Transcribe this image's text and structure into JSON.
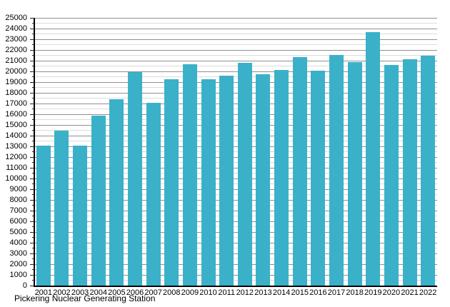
{
  "caption": "Pickering Nuclear Generating Station",
  "colors": {
    "bar": "#3ab1c9",
    "grid_major": "#8f8f8f",
    "grid_minor": "#dcdcdc",
    "axis": "#000000",
    "text": "#000000",
    "background": "#ffffff"
  },
  "chart_data": {
    "type": "bar",
    "title": "",
    "caption": "Pickering Nuclear Generating Station",
    "categories": [
      "2001",
      "2002",
      "2003",
      "2004",
      "2005",
      "2006",
      "2007",
      "2008",
      "2009",
      "2010",
      "2011",
      "2012",
      "2013",
      "2014",
      "2015",
      "2016",
      "2017",
      "2018",
      "2019",
      "2020",
      "2021",
      "2022"
    ],
    "values": [
      13100,
      14500,
      13100,
      15850,
      17400,
      19950,
      17050,
      19300,
      20700,
      19300,
      19600,
      20800,
      19750,
      20150,
      21350,
      20050,
      21550,
      20900,
      23650,
      20600,
      21150,
      21450
    ],
    "xlabel": "",
    "ylabel": "",
    "ylim": [
      0,
      25000
    ],
    "y_major_step": 1000,
    "y_minor_step": 500,
    "y_tick_labels": [
      "0",
      "1000",
      "2000",
      "3000",
      "4000",
      "5000",
      "6000",
      "7000",
      "8000",
      "9000",
      "10000",
      "11000",
      "12000",
      "13000",
      "14000",
      "15000",
      "16000",
      "17000",
      "18000",
      "19000",
      "20000",
      "21000",
      "22000",
      "23000",
      "24000",
      "25000"
    ],
    "grid": true,
    "legend": "none",
    "bar_color": "#3ab1c9"
  }
}
